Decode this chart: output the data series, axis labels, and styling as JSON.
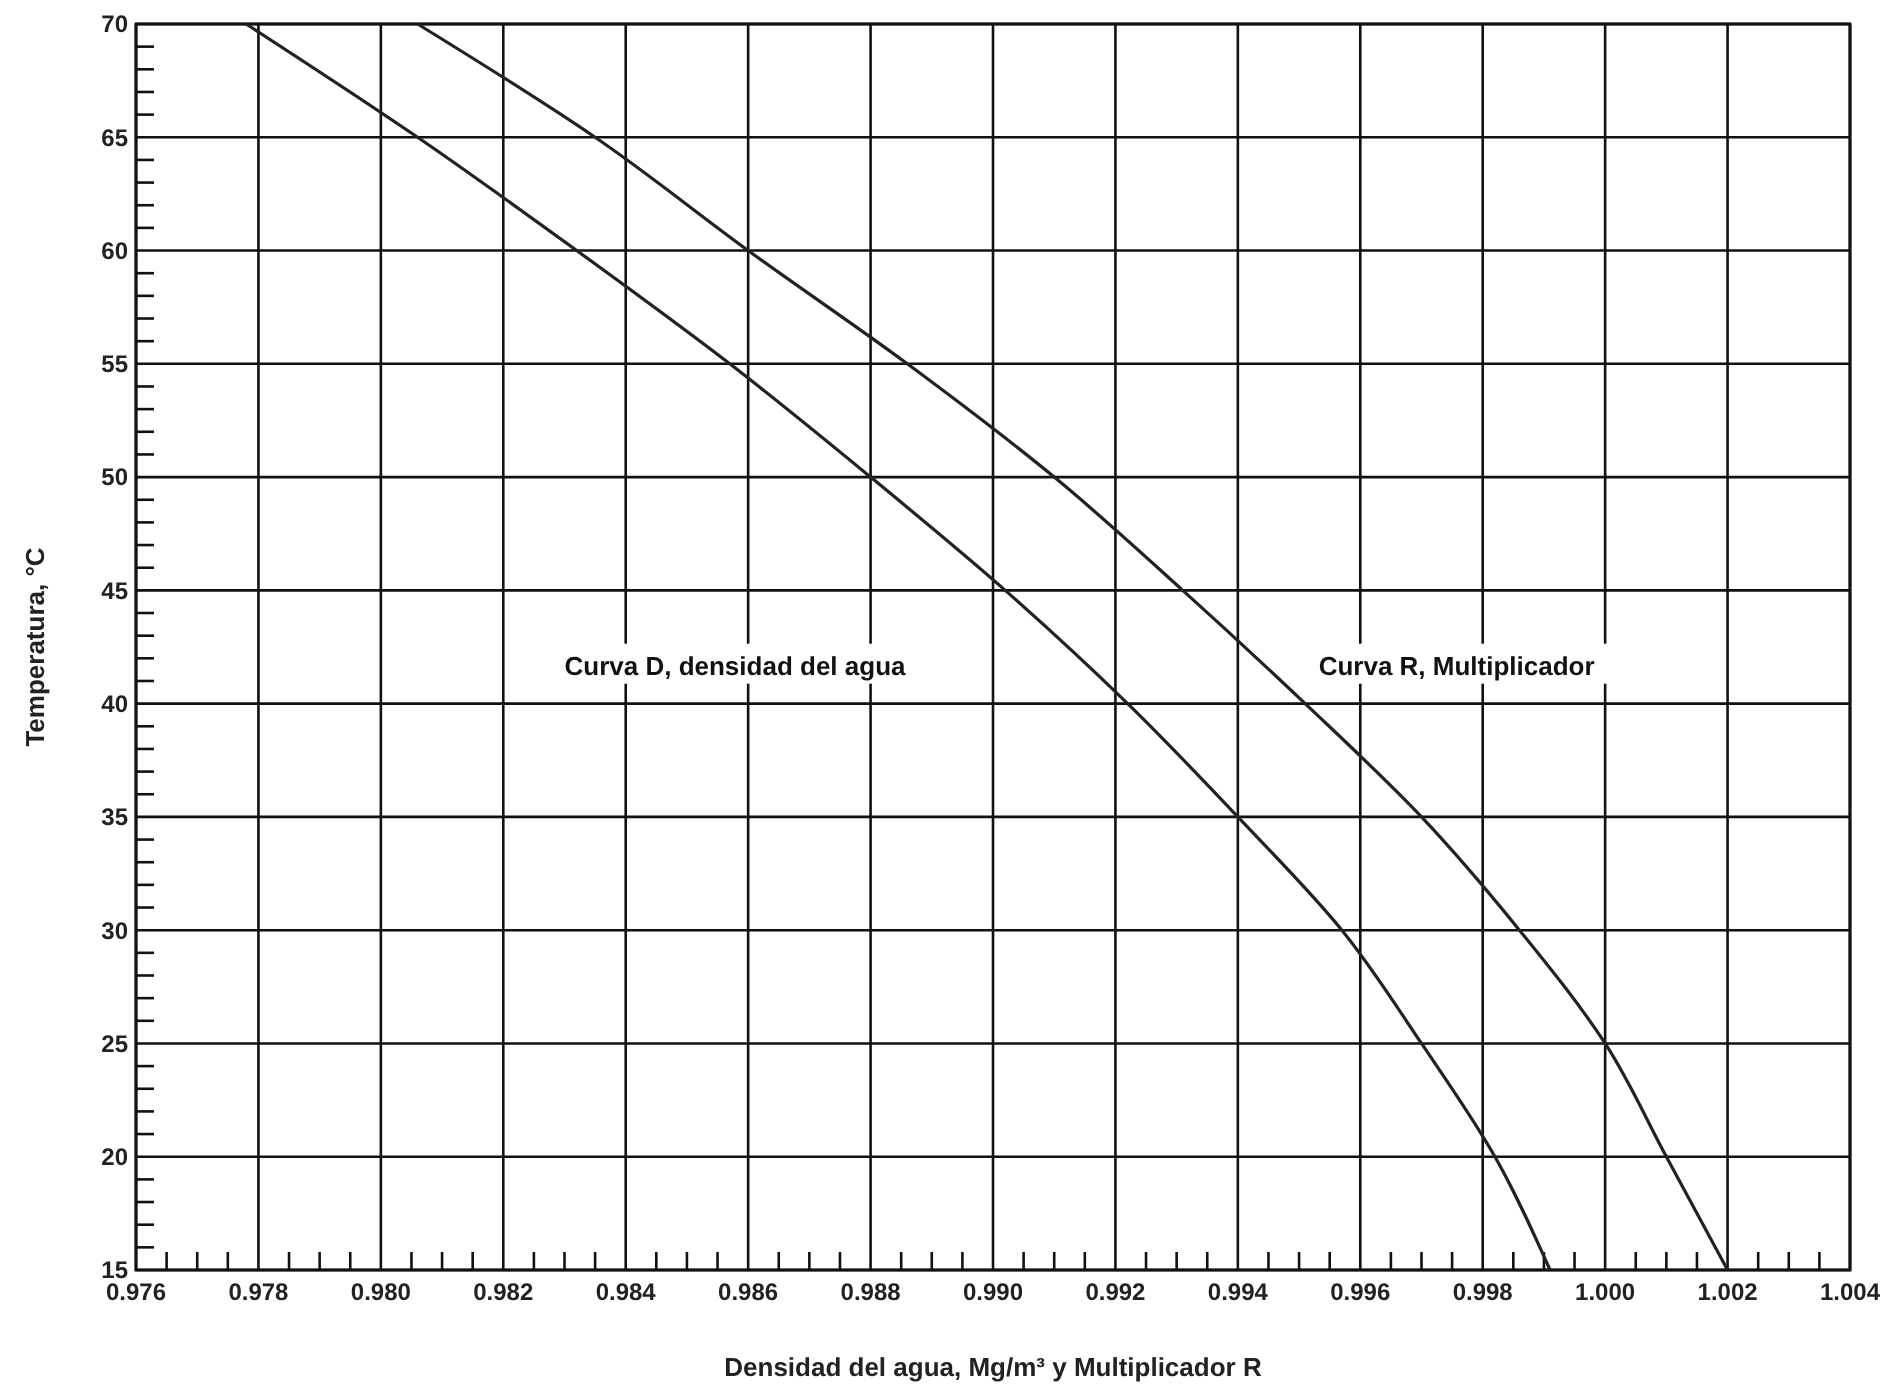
{
  "chart_data": {
    "type": "line",
    "xlabel": "Densidad del agua, Mg/m³ y Multiplicador R",
    "ylabel": "Temperatura, °C",
    "xlim": [
      0.976,
      1.004
    ],
    "ylim": [
      15,
      70
    ],
    "xticks": [
      {
        "value": 0.976,
        "label": "0.976"
      },
      {
        "value": 0.9765,
        "label": null
      },
      {
        "value": 0.977,
        "label": null
      },
      {
        "value": 0.9775,
        "label": null
      },
      {
        "value": 0.978,
        "label": "0.978"
      },
      {
        "value": 0.9785,
        "label": null
      },
      {
        "value": 0.979,
        "label": null
      },
      {
        "value": 0.9795,
        "label": null
      },
      {
        "value": 0.98,
        "label": "0.980"
      },
      {
        "value": 0.9805,
        "label": null
      },
      {
        "value": 0.981,
        "label": null
      },
      {
        "value": 0.9815,
        "label": null
      },
      {
        "value": 0.982,
        "label": "0.982"
      },
      {
        "value": 0.9825,
        "label": null
      },
      {
        "value": 0.983,
        "label": null
      },
      {
        "value": 0.9835,
        "label": null
      },
      {
        "value": 0.984,
        "label": "0.984"
      },
      {
        "value": 0.9845,
        "label": null
      },
      {
        "value": 0.985,
        "label": null
      },
      {
        "value": 0.9855,
        "label": null
      },
      {
        "value": 0.986,
        "label": "0.986"
      },
      {
        "value": 0.9865,
        "label": null
      },
      {
        "value": 0.987,
        "label": null
      },
      {
        "value": 0.9875,
        "label": null
      },
      {
        "value": 0.988,
        "label": "0.988"
      },
      {
        "value": 0.9885,
        "label": null
      },
      {
        "value": 0.989,
        "label": null
      },
      {
        "value": 0.9895,
        "label": null
      },
      {
        "value": 0.99,
        "label": "0.990"
      },
      {
        "value": 0.9905,
        "label": null
      },
      {
        "value": 0.991,
        "label": null
      },
      {
        "value": 0.9915,
        "label": null
      },
      {
        "value": 0.992,
        "label": "0.992"
      },
      {
        "value": 0.9925,
        "label": null
      },
      {
        "value": 0.993,
        "label": null
      },
      {
        "value": 0.9935,
        "label": null
      },
      {
        "value": 0.994,
        "label": "0.994"
      },
      {
        "value": 0.9945,
        "label": null
      },
      {
        "value": 0.995,
        "label": null
      },
      {
        "value": 0.9955,
        "label": null
      },
      {
        "value": 0.996,
        "label": "0.996"
      },
      {
        "value": 0.9965,
        "label": null
      },
      {
        "value": 0.997,
        "label": null
      },
      {
        "value": 0.9975,
        "label": null
      },
      {
        "value": 0.998,
        "label": "0.998"
      },
      {
        "value": 0.9985,
        "label": null
      },
      {
        "value": 0.999,
        "label": null
      },
      {
        "value": 0.9995,
        "label": null
      },
      {
        "value": 1.0,
        "label": "1.000"
      },
      {
        "value": 1.0005,
        "label": null
      },
      {
        "value": 1.001,
        "label": null
      },
      {
        "value": 1.0015,
        "label": null
      },
      {
        "value": 1.002,
        "label": "1.002"
      },
      {
        "value": 1.0025,
        "label": null
      },
      {
        "value": 1.003,
        "label": null
      },
      {
        "value": 1.0035,
        "label": null
      },
      {
        "value": 1.004,
        "label": "1.004"
      }
    ],
    "yticks": [
      15,
      {
        "value": 16,
        "label": null
      },
      {
        "value": 17,
        "label": null
      },
      {
        "value": 18,
        "label": null
      },
      {
        "value": 19,
        "label": null
      },
      20,
      {
        "value": 21,
        "label": null
      },
      {
        "value": 22,
        "label": null
      },
      {
        "value": 23,
        "label": null
      },
      {
        "value": 24,
        "label": null
      },
      25,
      {
        "value": 26,
        "label": null
      },
      {
        "value": 27,
        "label": null
      },
      {
        "value": 28,
        "label": null
      },
      {
        "value": 29,
        "label": null
      },
      30,
      {
        "value": 31,
        "label": null
      },
      {
        "value": 32,
        "label": null
      },
      {
        "value": 33,
        "label": null
      },
      {
        "value": 34,
        "label": null
      },
      35,
      {
        "value": 36,
        "label": null
      },
      {
        "value": 37,
        "label": null
      },
      {
        "value": 38,
        "label": null
      },
      {
        "value": 39,
        "label": null
      },
      40,
      {
        "value": 41,
        "label": null
      },
      {
        "value": 42,
        "label": null
      },
      {
        "value": 43,
        "label": null
      },
      {
        "value": 44,
        "label": null
      },
      45,
      {
        "value": 46,
        "label": null
      },
      {
        "value": 47,
        "label": null
      },
      {
        "value": 48,
        "label": null
      },
      {
        "value": 49,
        "label": null
      },
      50,
      {
        "value": 51,
        "label": null
      },
      {
        "value": 52,
        "label": null
      },
      {
        "value": 53,
        "label": null
      },
      {
        "value": 54,
        "label": null
      },
      55,
      {
        "value": 56,
        "label": null
      },
      {
        "value": 57,
        "label": null
      },
      {
        "value": 58,
        "label": null
      },
      {
        "value": 59,
        "label": null
      },
      60,
      {
        "value": 61,
        "label": null
      },
      {
        "value": 62,
        "label": null
      },
      {
        "value": 63,
        "label": null
      },
      {
        "value": 64,
        "label": null
      },
      65,
      {
        "value": 66,
        "label": null
      },
      {
        "value": 67,
        "label": null
      },
      {
        "value": 68,
        "label": null
      },
      {
        "value": 69,
        "label": null
      },
      70
    ],
    "grid": true,
    "marker": "none",
    "line_style": "solid",
    "series": [
      {
        "color": "#222222",
        "x": [
          0.9991,
          0.9982,
          0.997,
          0.9957,
          0.994,
          0.9922,
          0.9902,
          0.988,
          0.9857,
          0.9832,
          0.9806,
          0.9778
        ],
        "values": [
          15,
          20,
          25,
          30,
          35,
          40,
          45,
          50,
          55,
          60,
          65,
          70
        ]
      },
      {
        "color": "#222222",
        "x": [
          1.002,
          1.001,
          1.0,
          0.9986,
          0.997,
          0.9951,
          0.9931,
          0.991,
          0.9886,
          0.986,
          0.9835,
          0.9806
        ],
        "values": [
          15,
          20,
          25,
          30,
          35,
          40,
          45,
          50,
          55,
          60,
          65,
          70
        ]
      }
    ],
    "annotations": [
      "Curva D, densidad del agua",
      "Curva R, Multiplicador"
    ]
  }
}
